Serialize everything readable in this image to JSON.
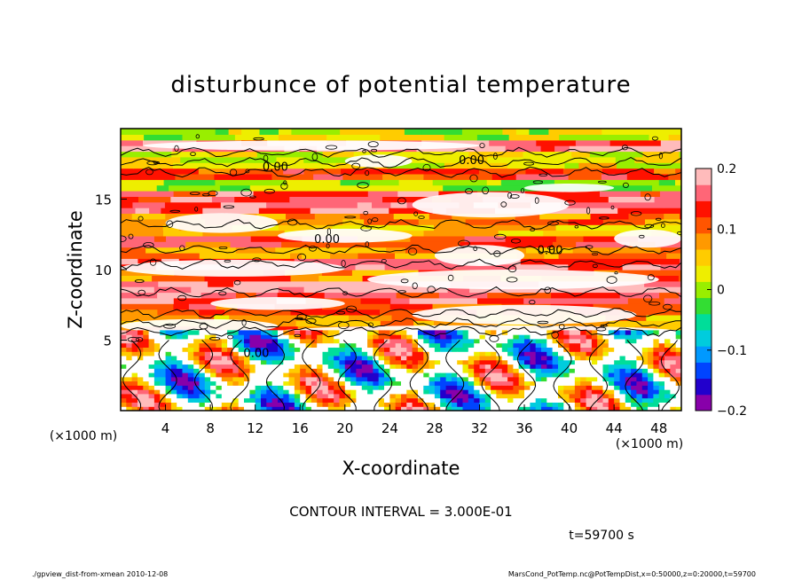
{
  "chart_data": {
    "type": "heatmap",
    "title": "disturbunce of potential temperature",
    "xlabel": "X-coordinate",
    "ylabel": "Z-coordinate",
    "x_unit": "(×1000 m)",
    "y_unit": "(×1000 m)",
    "xlim": [
      0,
      50
    ],
    "ylim": [
      0,
      20
    ],
    "x_ticks": [
      4,
      8,
      12,
      16,
      20,
      24,
      28,
      32,
      36,
      40,
      44,
      48
    ],
    "y_ticks": [
      5,
      10,
      15
    ],
    "colorbar": {
      "range": [
        -0.2,
        0.2
      ],
      "ticks": [
        {
          "value": 0.2,
          "label": "0.2"
        },
        {
          "value": 0.1,
          "label": "0.1"
        },
        {
          "value": 0,
          "label": "0"
        },
        {
          "value": -0.1,
          "label": "−0.1"
        },
        {
          "value": -0.2,
          "label": "−0.2"
        }
      ],
      "colors": [
        "#8800aa",
        "#2200cc",
        "#0044ff",
        "#0099ff",
        "#00ccdd",
        "#00dd99",
        "#33dd33",
        "#99ee00",
        "#eeee00",
        "#ffcc00",
        "#ff9900",
        "#ff5500",
        "#ff1100",
        "#ff6677",
        "#ffbbbb"
      ]
    },
    "contour_labels": [
      {
        "text": "0.00",
        "x": 13.8,
        "z": 17.0
      },
      {
        "text": "0.00",
        "x": 31.3,
        "z": 17.5
      },
      {
        "text": "0.00",
        "x": 18.4,
        "z": 11.9
      },
      {
        "text": "0.00",
        "x": 38.3,
        "z": 11.1
      },
      {
        "text": "0.00",
        "x": 12.1,
        "z": 3.8
      }
    ],
    "contour_interval": "CONTOUR INTERVAL = 3.000E-01",
    "time": "t=59700 s"
  },
  "footer": {
    "left": "./gpview_dist-from-xmean  2010-12-08",
    "right": "MarsCond_PotTemp.nc@PotTempDist,x=0:50000,z=0:20000,t=59700"
  }
}
